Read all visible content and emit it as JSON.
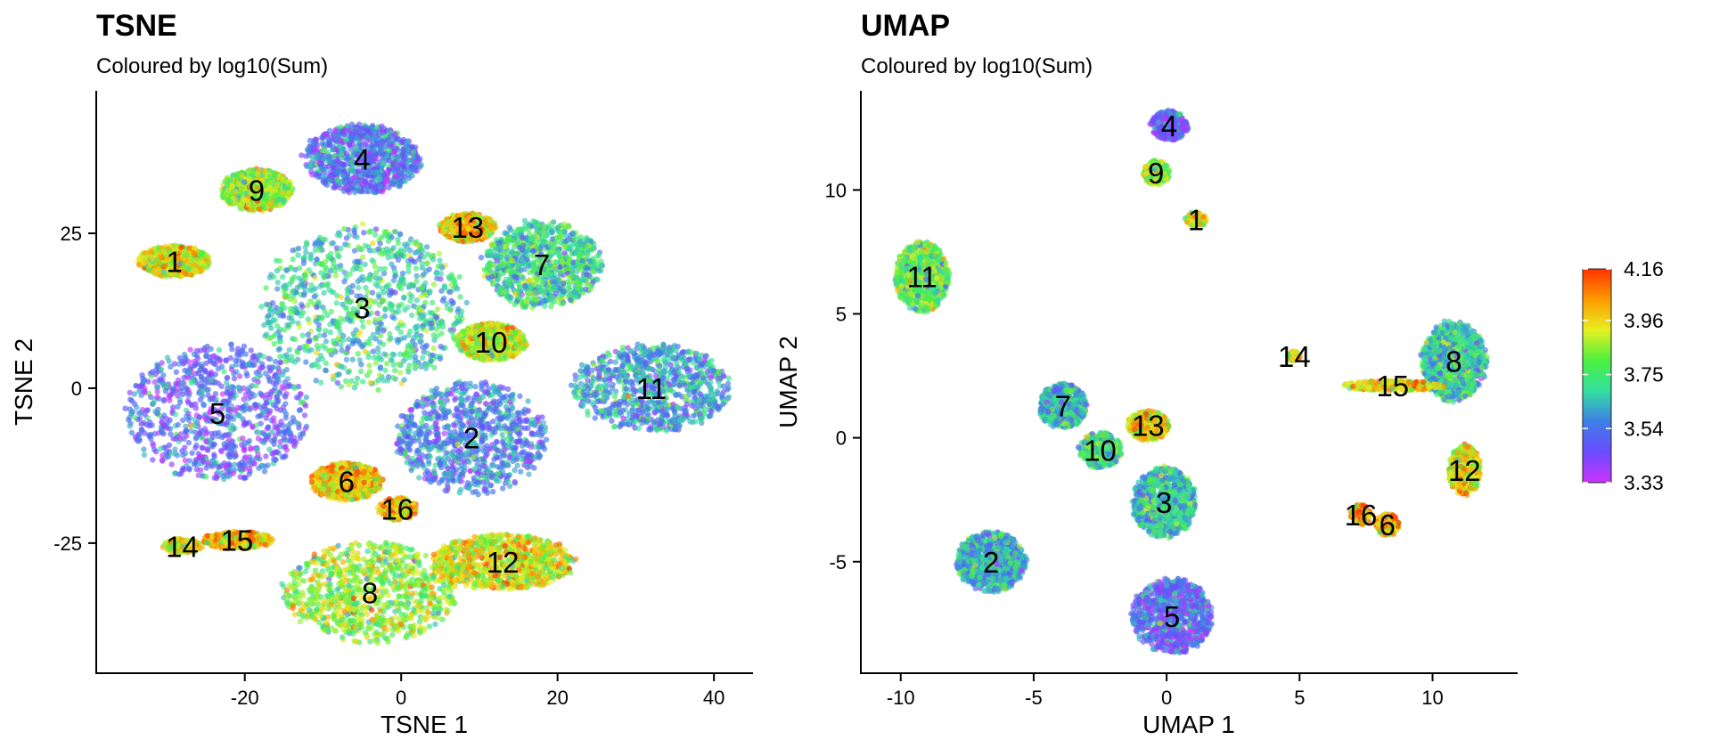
{
  "chart_data": [
    {
      "type": "scatter",
      "title": "TSNE",
      "subtitle": "Coloured by log10(Sum)",
      "xlabel": "TSNE 1",
      "ylabel": "TSNE 2",
      "xlim": [
        -39,
        45
      ],
      "ylim": [
        -46,
        48
      ],
      "x_ticks": [
        -20,
        0,
        20,
        40
      ],
      "x_tick_labels": [
        "-20",
        "0",
        "20",
        "40"
      ],
      "y_ticks": [
        -25,
        0,
        25
      ],
      "y_tick_labels": [
        "-25",
        "0",
        "25"
      ],
      "color_variable": "log10(Sum)",
      "clusters": [
        {
          "label": "1",
          "x": -29,
          "y": 20.5,
          "rx": 4.5,
          "ry": 2.5,
          "mean_color": 3.92
        },
        {
          "label": "2",
          "x": 9,
          "y": -8,
          "rx": 9.5,
          "ry": 9,
          "mean_color": 3.55
        },
        {
          "label": "3",
          "x": -5,
          "y": 13,
          "rx": 13,
          "ry": 13,
          "mean_color": 3.68
        },
        {
          "label": "4",
          "x": -5,
          "y": 37,
          "rx": 7.5,
          "ry": 5.5,
          "mean_color": 3.52
        },
        {
          "label": "5",
          "x": -23.5,
          "y": -4,
          "rx": 11.5,
          "ry": 11,
          "mean_color": 3.5
        },
        {
          "label": "6",
          "x": -7,
          "y": -15,
          "rx": 4.5,
          "ry": 3,
          "mean_color": 3.98
        },
        {
          "label": "7",
          "x": 18,
          "y": 20,
          "rx": 7.5,
          "ry": 7,
          "mean_color": 3.7
        },
        {
          "label": "8",
          "x": -4,
          "y": -33,
          "rx": 11,
          "ry": 8,
          "mean_color": 3.85
        },
        {
          "label": "9",
          "x": -18.5,
          "y": 32,
          "rx": 4.5,
          "ry": 3.3,
          "mean_color": 3.85
        },
        {
          "label": "10",
          "x": 11.5,
          "y": 7.5,
          "rx": 4.5,
          "ry": 3,
          "mean_color": 3.9
        },
        {
          "label": "11",
          "x": 32,
          "y": 0,
          "rx": 10,
          "ry": 7,
          "mean_color": 3.6
        },
        {
          "label": "12",
          "x": 13,
          "y": -28,
          "rx": 9,
          "ry": 4.5,
          "mean_color": 3.93
        },
        {
          "label": "13",
          "x": 8.5,
          "y": 26,
          "rx": 3.5,
          "ry": 2.3,
          "mean_color": 3.98
        },
        {
          "label": "14",
          "x": -28,
          "y": -25.5,
          "rx": 2.5,
          "ry": 1.2,
          "mean_color": 3.95
        },
        {
          "label": "15",
          "x": -21,
          "y": -24.5,
          "rx": 4.5,
          "ry": 1.4,
          "mean_color": 3.98
        },
        {
          "label": "16",
          "x": -0.5,
          "y": -19.5,
          "rx": 2.5,
          "ry": 1.8,
          "mean_color": 4.0
        }
      ]
    },
    {
      "type": "scatter",
      "title": "UMAP",
      "subtitle": "Coloured by log10(Sum)",
      "xlabel": "UMAP 1",
      "ylabel": "UMAP 2",
      "xlim": [
        -11.5,
        13.2
      ],
      "ylim": [
        -9.5,
        14
      ],
      "x_ticks": [
        -10,
        -5,
        0,
        5,
        10
      ],
      "x_tick_labels": [
        "-10",
        "-5",
        "0",
        "5",
        "10"
      ],
      "y_ticks": [
        -5,
        0,
        5,
        10
      ],
      "y_tick_labels": [
        "-5",
        "0",
        "5",
        "10"
      ],
      "color_variable": "log10(Sum)",
      "clusters": [
        {
          "label": "1",
          "x": 1.1,
          "y": 8.8,
          "rx": 0.4,
          "ry": 0.3,
          "mean_color": 3.92
        },
        {
          "label": "2",
          "x": -6.6,
          "y": -5,
          "rx": 1.3,
          "ry": 1.2,
          "mean_color": 3.62
        },
        {
          "label": "3",
          "x": -0.1,
          "y": -2.6,
          "rx": 1.2,
          "ry": 1.4,
          "mean_color": 3.66
        },
        {
          "label": "4",
          "x": 0.1,
          "y": 12.6,
          "rx": 0.7,
          "ry": 0.6,
          "mean_color": 3.47
        },
        {
          "label": "5",
          "x": 0.2,
          "y": -7.2,
          "rx": 1.5,
          "ry": 1.5,
          "mean_color": 3.5
        },
        {
          "label": "6",
          "x": 8.3,
          "y": -3.5,
          "rx": 0.45,
          "ry": 0.45,
          "mean_color": 4.0
        },
        {
          "label": "7",
          "x": -3.9,
          "y": 1.3,
          "rx": 0.9,
          "ry": 0.9,
          "mean_color": 3.65
        },
        {
          "label": "8",
          "x": 10.8,
          "y": 3.1,
          "rx": 1.2,
          "ry": 1.6,
          "mean_color": 3.68
        },
        {
          "label": "9",
          "x": -0.4,
          "y": 10.7,
          "rx": 0.5,
          "ry": 0.5,
          "mean_color": 3.82
        },
        {
          "label": "10",
          "x": -2.5,
          "y": -0.5,
          "rx": 0.8,
          "ry": 0.7,
          "mean_color": 3.72
        },
        {
          "label": "11",
          "x": -9.2,
          "y": 6.5,
          "rx": 1.0,
          "ry": 1.4,
          "mean_color": 3.78
        },
        {
          "label": "12",
          "x": 11.2,
          "y": -1.3,
          "rx": 0.6,
          "ry": 1.0,
          "mean_color": 3.93
        },
        {
          "label": "13",
          "x": -0.7,
          "y": 0.5,
          "rx": 0.8,
          "ry": 0.6,
          "mean_color": 3.95
        },
        {
          "label": "14",
          "x": 4.8,
          "y": 3.3,
          "rx": 0.25,
          "ry": 0.2,
          "mean_color": 3.92
        },
        {
          "label": "15",
          "x": 8.5,
          "y": 2.1,
          "rx": 1.9,
          "ry": 0.2,
          "mean_color": 3.95
        },
        {
          "label": "16",
          "x": 7.3,
          "y": -3.1,
          "rx": 0.4,
          "ry": 0.4,
          "mean_color": 4.0
        }
      ]
    }
  ],
  "colorbar": {
    "min": 3.33,
    "max": 4.16,
    "tick_values": [
      4.16,
      3.96,
      3.75,
      3.54,
      3.33
    ],
    "tick_labels": [
      "4.16",
      "3.96",
      "3.75",
      "3.54",
      "3.33"
    ],
    "colors": [
      "#cc33ff",
      "#6a4cff",
      "#3d7fe8",
      "#33e0a0",
      "#4cf040",
      "#e6f020",
      "#ff9a00",
      "#ff3300"
    ]
  }
}
